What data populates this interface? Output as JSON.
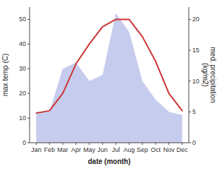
{
  "chart_data": {
    "type": "line",
    "xlabel": "date (month)",
    "ylabel": "max temp (C)",
    "y2label": "med. precipitation\n(kg/m2)",
    "categories": [
      "Jan",
      "Feb",
      "Mar",
      "Apr",
      "May",
      "Jun",
      "Jul",
      "Aug",
      "Sep",
      "Oct",
      "Nov",
      "Dec"
    ],
    "series": [
      {
        "type": "area",
        "axis": "y2",
        "color": "#c5ccee",
        "values": [
          5,
          5,
          12,
          13,
          10,
          11,
          21,
          18,
          10,
          7,
          5,
          4.5
        ]
      },
      {
        "type": "line",
        "color": "#cc3333",
        "values": [
          12,
          13,
          20,
          32,
          40,
          47,
          50,
          50,
          43,
          33,
          20,
          13
        ]
      }
    ],
    "ylim": [
      0,
      55
    ],
    "yticks": [
      0,
      10,
      20,
      30,
      40,
      50
    ],
    "y2lim": [
      0,
      22
    ],
    "y2ticks": [
      0,
      5,
      10,
      15,
      20
    ],
    "grid": false
  }
}
